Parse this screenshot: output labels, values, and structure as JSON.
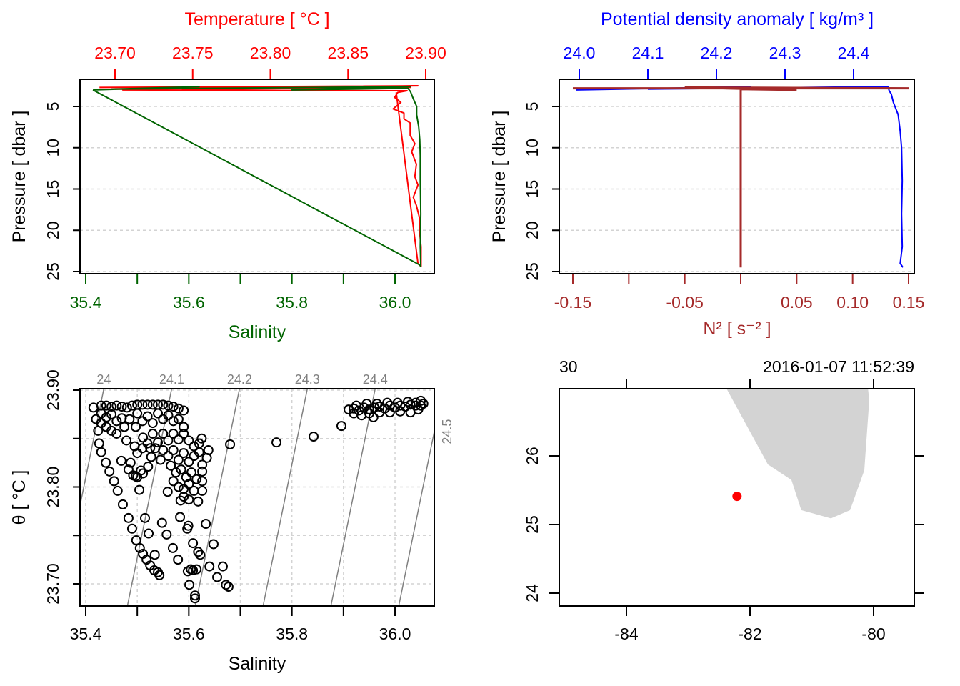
{
  "chart_data": [
    {
      "type": "line",
      "panel": "temperature-salinity-profile",
      "top_axis": {
        "label": "Temperature [ °C ]",
        "color": "#FF0000",
        "ticks": [
          23.7,
          23.75,
          23.8,
          23.85,
          23.9
        ],
        "tick_labels": [
          "23.70",
          "23.75",
          "23.80",
          "23.85",
          "23.90"
        ]
      },
      "bottom_axis": {
        "label": "Salinity",
        "color": "#006400",
        "ticks": [
          35.4,
          35.5,
          35.6,
          35.7,
          35.8,
          35.9,
          36.0
        ],
        "tick_labels": [
          "35.4",
          "",
          "35.6",
          "",
          "35.8",
          "",
          "36.0"
        ]
      },
      "ylabel": "Pressure [ dbar ]",
      "yticks": [
        5,
        10,
        15,
        20,
        25
      ],
      "ytick_labels": [
        "5",
        "10",
        "15",
        "20",
        "25"
      ],
      "yreversed": true,
      "grid": "horizontal-dashed",
      "series": [
        {
          "variable": "temperature",
          "color": "#FF0000",
          "points": [
            [
              2.7,
              23.69
            ],
            [
              2.5,
              23.895
            ],
            [
              2.9,
              23.7
            ],
            [
              2.7,
              23.89
            ],
            [
              3.0,
              23.705
            ],
            [
              3.1,
              23.888
            ],
            [
              3.3,
              23.882
            ],
            [
              3.9,
              23.88
            ],
            [
              4.5,
              23.884
            ],
            [
              5.3,
              23.879
            ],
            [
              5.8,
              23.886
            ],
            [
              6.5,
              23.886
            ],
            [
              7.0,
              23.89
            ],
            [
              8.5,
              23.89
            ],
            [
              9.5,
              23.893
            ],
            [
              10.5,
              23.891
            ],
            [
              12,
              23.894
            ],
            [
              13.5,
              23.893
            ],
            [
              14.5,
              23.895
            ],
            [
              16,
              23.892
            ],
            [
              17,
              23.894
            ],
            [
              18.5,
              23.896
            ],
            [
              20,
              23.896
            ],
            [
              22,
              23.897
            ],
            [
              24.4,
              23.897
            ],
            [
              24.0,
              23.895
            ],
            [
              3.3,
              23.881
            ]
          ]
        },
        {
          "variable": "salinity",
          "color": "#006400",
          "points": [
            [
              3.0,
              35.414
            ],
            [
              2.6,
              35.62
            ],
            [
              2.9,
              35.45
            ],
            [
              2.6,
              36.03
            ],
            [
              3.0,
              35.8
            ],
            [
              2.8,
              36.025
            ],
            [
              3.2,
              36.03
            ],
            [
              4.0,
              36.035
            ],
            [
              5.0,
              36.042
            ],
            [
              6.0,
              36.042
            ],
            [
              7.5,
              36.046
            ],
            [
              9,
              36.048
            ],
            [
              11,
              36.049
            ],
            [
              14,
              36.049
            ],
            [
              18,
              36.05
            ],
            [
              22,
              36.049
            ],
            [
              24.4,
              36.05
            ],
            [
              24.2,
              36.048
            ],
            [
              3.0,
              35.414
            ]
          ]
        }
      ]
    },
    {
      "type": "line",
      "panel": "density-n2-profile",
      "top_axis": {
        "label": "Potential density anomaly [ kg/m³ ]",
        "color": "#0000FF",
        "ticks": [
          24.0,
          24.1,
          24.2,
          24.3,
          24.4
        ],
        "tick_labels": [
          "24.0",
          "24.1",
          "24.2",
          "24.3",
          "24.4"
        ]
      },
      "bottom_axis": {
        "label": "N² [ s⁻² ]",
        "color": "#A52A2A",
        "ticks": [
          -0.15,
          -0.1,
          -0.05,
          0.0,
          0.05,
          0.1,
          0.15
        ],
        "tick_labels": [
          "-0.15",
          "",
          "-0.05",
          "",
          "0.05",
          "0.10",
          "0.15"
        ]
      },
      "ylabel": "Pressure [ dbar ]",
      "yticks": [
        5,
        10,
        15,
        20,
        25
      ],
      "ytick_labels": [
        "5",
        "10",
        "15",
        "20",
        "25"
      ],
      "yreversed": true,
      "grid": "horizontal-dashed",
      "series": [
        {
          "variable": "sigma_theta",
          "color": "#0000FF",
          "points": [
            [
              3.0,
              23.995
            ],
            [
              2.6,
              24.25
            ],
            [
              2.9,
              24.1
            ],
            [
              2.6,
              24.45
            ],
            [
              3.1,
              24.452
            ],
            [
              3.5,
              24.455
            ],
            [
              4.5,
              24.458
            ],
            [
              6,
              24.465
            ],
            [
              8,
              24.468
            ],
            [
              10,
              24.47
            ],
            [
              14,
              24.471
            ],
            [
              18,
              24.47
            ],
            [
              22,
              24.471
            ],
            [
              24.0,
              24.468
            ],
            [
              24.5,
              24.472
            ]
          ]
        },
        {
          "variable": "N2",
          "color": "#A52A2A",
          "points": [
            [
              2.8,
              -0.15
            ],
            [
              2.8,
              0.15
            ],
            [
              2.7,
              -0.05
            ],
            [
              3.0,
              0.05
            ],
            [
              2.9,
              0.0
            ],
            [
              3.5,
              0.0
            ],
            [
              10,
              0.0
            ],
            [
              24.5,
              0.0
            ]
          ]
        }
      ]
    },
    {
      "type": "scatter",
      "panel": "ts-diagram",
      "xlabel": "Salinity",
      "ylabel": "θ [ °C ]",
      "xticks": [
        35.4,
        35.5,
        35.6,
        35.7,
        35.8,
        35.9,
        36.0
      ],
      "xtick_labels": [
        "35.4",
        "",
        "35.6",
        "",
        "35.8",
        "",
        "36.0"
      ],
      "yticks": [
        23.7,
        23.75,
        23.8,
        23.85,
        23.9
      ],
      "ytick_labels": [
        "23.70",
        "",
        "23.80",
        "",
        "23.90"
      ],
      "grid": "dashed",
      "isopycnals": {
        "color": "#808080",
        "levels": [
          24.0,
          24.1,
          24.2,
          24.3,
          24.4,
          24.5
        ],
        "labels": [
          "24",
          "24.1",
          "24.2",
          "24.3",
          "24.4",
          "24.5"
        ]
      },
      "points": [
        [
          35.415,
          23.882
        ],
        [
          35.42,
          23.87
        ],
        [
          35.424,
          23.858
        ],
        [
          35.426,
          23.845
        ],
        [
          35.43,
          23.836
        ],
        [
          35.439,
          23.825
        ],
        [
          35.446,
          23.816
        ],
        [
          35.455,
          23.806
        ],
        [
          35.462,
          23.796
        ],
        [
          35.472,
          23.782
        ],
        [
          35.483,
          23.768
        ],
        [
          35.49,
          23.757
        ],
        [
          35.498,
          23.745
        ],
        [
          35.505,
          23.737
        ],
        [
          35.511,
          23.731
        ],
        [
          35.518,
          23.725
        ],
        [
          35.525,
          23.719
        ],
        [
          35.533,
          23.714
        ],
        [
          35.543,
          23.709
        ],
        [
          35.54,
          23.712
        ],
        [
          35.504,
          23.797
        ],
        [
          35.515,
          23.768
        ],
        [
          35.522,
          23.752
        ],
        [
          35.534,
          23.73
        ],
        [
          35.559,
          23.795
        ],
        [
          35.548,
          23.763
        ],
        [
          35.557,
          23.751
        ],
        [
          35.569,
          23.737
        ],
        [
          35.579,
          23.725
        ],
        [
          35.584,
          23.786
        ],
        [
          35.583,
          23.769
        ],
        [
          35.597,
          23.757
        ],
        [
          35.599,
          23.76
        ],
        [
          35.608,
          23.742
        ],
        [
          35.622,
          23.73
        ],
        [
          35.618,
          23.733
        ],
        [
          35.604,
          23.715
        ],
        [
          35.601,
          23.699
        ],
        [
          35.612,
          23.688
        ],
        [
          35.612,
          23.685
        ],
        [
          35.598,
          23.713
        ],
        [
          35.608,
          23.714
        ],
        [
          35.615,
          23.715
        ],
        [
          35.633,
          23.762
        ],
        [
          35.648,
          23.741
        ],
        [
          35.64,
          23.718
        ],
        [
          35.666,
          23.718
        ],
        [
          35.655,
          23.707
        ],
        [
          35.672,
          23.699
        ],
        [
          35.677,
          23.697
        ],
        [
          35.618,
          23.785
        ],
        [
          35.626,
          23.796
        ],
        [
          35.626,
          23.806
        ],
        [
          35.626,
          23.816
        ],
        [
          35.626,
          23.823
        ],
        [
          35.638,
          23.838
        ],
        [
          35.635,
          23.83
        ],
        [
          35.479,
          23.848
        ],
        [
          35.469,
          23.827
        ],
        [
          35.483,
          23.818
        ],
        [
          35.497,
          23.811
        ],
        [
          35.511,
          23.814
        ],
        [
          35.521,
          23.821
        ],
        [
          35.527,
          23.831
        ],
        [
          35.525,
          23.84
        ],
        [
          35.511,
          23.851
        ],
        [
          35.497,
          23.862
        ],
        [
          35.487,
          23.825
        ],
        [
          35.507,
          23.817
        ],
        [
          35.5,
          23.81
        ],
        [
          35.492,
          23.812
        ],
        [
          35.43,
          23.884
        ],
        [
          35.44,
          23.884
        ],
        [
          35.45,
          23.883
        ],
        [
          35.46,
          23.884
        ],
        [
          35.47,
          23.883
        ],
        [
          35.48,
          23.882
        ],
        [
          35.49,
          23.884
        ],
        [
          35.5,
          23.885
        ],
        [
          35.51,
          23.885
        ],
        [
          35.52,
          23.885
        ],
        [
          35.53,
          23.885
        ],
        [
          35.54,
          23.885
        ],
        [
          35.55,
          23.885
        ],
        [
          35.56,
          23.884
        ],
        [
          35.57,
          23.883
        ],
        [
          35.58,
          23.881
        ],
        [
          35.59,
          23.879
        ],
        [
          35.43,
          23.876
        ],
        [
          35.44,
          23.872
        ],
        [
          35.45,
          23.875
        ],
        [
          35.46,
          23.868
        ],
        [
          35.47,
          23.871
        ],
        [
          35.44,
          23.862
        ],
        [
          35.45,
          23.858
        ],
        [
          35.46,
          23.855
        ],
        [
          35.43,
          23.866
        ],
        [
          35.475,
          23.862
        ],
        [
          35.485,
          23.87
        ],
        [
          35.5,
          23.876
        ],
        [
          35.51,
          23.868
        ],
        [
          35.52,
          23.873
        ],
        [
          35.53,
          23.866
        ],
        [
          35.54,
          23.876
        ],
        [
          35.55,
          23.87
        ],
        [
          35.56,
          23.874
        ],
        [
          35.57,
          23.868
        ],
        [
          35.58,
          23.87
        ],
        [
          35.59,
          23.862
        ],
        [
          35.53,
          23.855
        ],
        [
          35.54,
          23.846
        ],
        [
          35.55,
          23.855
        ],
        [
          35.56,
          23.848
        ],
        [
          35.57,
          23.855
        ],
        [
          35.58,
          23.849
        ],
        [
          35.59,
          23.855
        ],
        [
          35.6,
          23.848
        ],
        [
          35.61,
          23.842
        ],
        [
          35.62,
          23.845
        ],
        [
          35.625,
          23.85
        ],
        [
          35.55,
          23.838
        ],
        [
          35.56,
          23.832
        ],
        [
          35.57,
          23.838
        ],
        [
          35.58,
          23.828
        ],
        [
          35.59,
          23.835
        ],
        [
          35.6,
          23.826
        ],
        [
          35.61,
          23.832
        ],
        [
          35.62,
          23.836
        ],
        [
          35.565,
          23.822
        ],
        [
          35.575,
          23.815
        ],
        [
          35.585,
          23.818
        ],
        [
          35.595,
          23.81
        ],
        [
          35.605,
          23.815
        ],
        [
          35.615,
          23.808
        ],
        [
          35.57,
          23.806
        ],
        [
          35.58,
          23.8
        ],
        [
          35.59,
          23.798
        ],
        [
          35.6,
          23.803
        ],
        [
          35.61,
          23.796
        ],
        [
          35.59,
          23.79
        ],
        [
          35.6,
          23.787
        ],
        [
          35.51,
          23.84
        ],
        [
          35.52,
          23.845
        ],
        [
          35.5,
          23.835
        ],
        [
          35.495,
          23.842
        ],
        [
          35.535,
          23.84
        ],
        [
          35.545,
          23.828
        ],
        [
          35.68,
          23.844
        ],
        [
          35.77,
          23.846
        ],
        [
          35.842,
          23.852
        ],
        [
          35.896,
          23.863
        ],
        [
          35.958,
          23.872
        ],
        [
          35.91,
          23.88
        ],
        [
          35.92,
          23.881
        ],
        [
          35.93,
          23.879
        ],
        [
          35.94,
          23.882
        ],
        [
          35.95,
          23.88
        ],
        [
          35.96,
          23.882
        ],
        [
          35.97,
          23.883
        ],
        [
          35.98,
          23.881
        ],
        [
          35.99,
          23.884
        ],
        [
          36.0,
          23.882
        ],
        [
          36.01,
          23.884
        ],
        [
          36.02,
          23.883
        ],
        [
          36.03,
          23.885
        ],
        [
          36.04,
          23.887
        ],
        [
          36.05,
          23.889
        ],
        [
          36.055,
          23.886
        ],
        [
          35.92,
          23.876
        ],
        [
          35.935,
          23.874
        ],
        [
          35.95,
          23.876
        ],
        [
          35.97,
          23.877
        ],
        [
          35.99,
          23.877
        ],
        [
          36.01,
          23.878
        ],
        [
          36.03,
          23.877
        ],
        [
          36.045,
          23.88
        ],
        [
          36.05,
          23.884
        ],
        [
          36.04,
          23.884
        ],
        [
          35.925,
          23.884
        ],
        [
          35.945,
          23.886
        ],
        [
          35.965,
          23.886
        ],
        [
          35.985,
          23.887
        ],
        [
          36.005,
          23.887
        ],
        [
          36.025,
          23.888
        ]
      ]
    },
    {
      "type": "map",
      "panel": "station-map",
      "top_left_text": "30",
      "top_right_text": "2016-01-07 11:52:39",
      "xticks": [
        -84,
        -82,
        -80
      ],
      "xtick_labels": [
        "-84",
        "-82",
        "-80"
      ],
      "yticks": [
        24,
        25,
        26
      ],
      "ytick_labels": [
        "24",
        "25",
        "26"
      ],
      "xlim": [
        -85.09,
        -79.34
      ],
      "ylim": [
        23.81,
        26.98
      ],
      "land_color": "#D3D3D3",
      "land_polygon": [
        [
          -82.38,
          26.98
        ],
        [
          -81.71,
          25.875
        ],
        [
          -81.33,
          25.65
        ],
        [
          -81.17,
          25.21
        ],
        [
          -80.69,
          25.09
        ],
        [
          -80.38,
          25.21
        ],
        [
          -80.15,
          25.79
        ],
        [
          -80.07,
          26.81
        ],
        [
          -80.09,
          26.98
        ]
      ],
      "station": {
        "lon": -82.21,
        "lat": 25.41,
        "color": "#FF0000"
      }
    }
  ]
}
